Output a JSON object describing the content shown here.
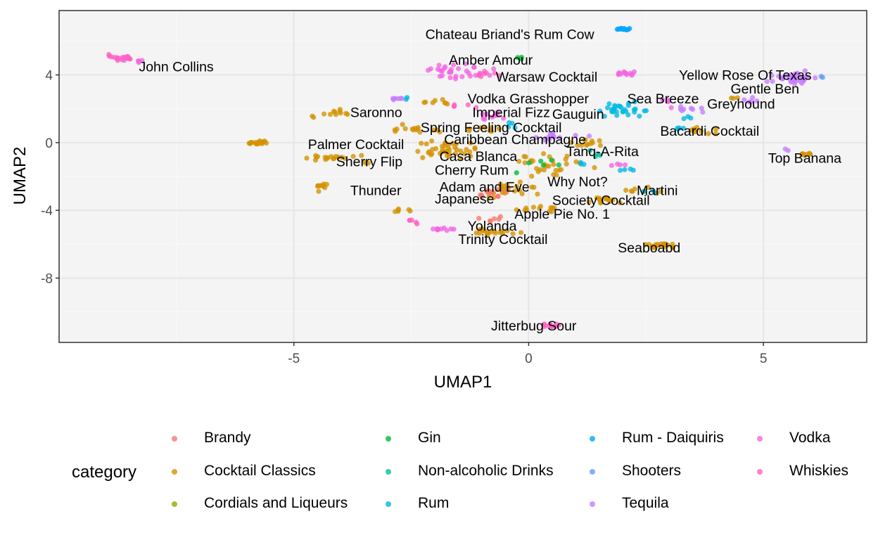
{
  "chart_data": {
    "type": "scatter",
    "xlabel": "UMAP1",
    "ylabel": "UMAP2",
    "xlim": [
      -10,
      7.2
    ],
    "ylim": [
      -11.8,
      7.8
    ],
    "xticks": [
      -5,
      0,
      5
    ],
    "yticks": [
      -8,
      -4,
      0,
      4
    ],
    "xtick_labels": [
      "-5",
      "0",
      "5"
    ],
    "ytick_labels": [
      "-8",
      "-4",
      "0",
      "4"
    ],
    "grid": true,
    "legend_title": "category",
    "legend_position": "bottom",
    "categories": [
      {
        "name": "Brandy",
        "color": "#F8766D"
      },
      {
        "name": "Cocktail Classics",
        "color": "#D39200"
      },
      {
        "name": "Cordials and Liqueurs",
        "color": "#93AA00"
      },
      {
        "name": "Gin",
        "color": "#00BA38"
      },
      {
        "name": "Non-alcoholic Drinks",
        "color": "#00C19F"
      },
      {
        "name": "Rum",
        "color": "#00B9E3"
      },
      {
        "name": "Rum - Daiquiris",
        "color": "#00A5FF"
      },
      {
        "name": "Shooters",
        "color": "#619CFF"
      },
      {
        "name": "Tequila",
        "color": "#C77CFF"
      },
      {
        "name": "Vodka",
        "color": "#F564E3"
      },
      {
        "name": "Whiskies",
        "color": "#FF61C3"
      }
    ],
    "annotations": [
      {
        "text": "Chateau Briand's Rum Cow",
        "x": -2.2,
        "y": 6.4
      },
      {
        "text": "John Collins",
        "x": -8.3,
        "y": 4.5
      },
      {
        "text": "Amber Amour",
        "x": -1.7,
        "y": 4.9
      },
      {
        "text": "Yellow Rose Of Texas",
        "x": 3.2,
        "y": 4.0
      },
      {
        "text": "Warsaw Cocktail",
        "x": -0.7,
        "y": 3.9
      },
      {
        "text": "Gentle Ben",
        "x": 4.3,
        "y": 3.2
      },
      {
        "text": "Vodka Grasshopper",
        "x": -1.3,
        "y": 2.6
      },
      {
        "text": "Sea Breeze",
        "x": 2.1,
        "y": 2.6
      },
      {
        "text": "Greyhound",
        "x": 3.8,
        "y": 2.3
      },
      {
        "text": "Saronno",
        "x": -3.8,
        "y": 1.8
      },
      {
        "text": "Imperial Fizz",
        "x": -1.2,
        "y": 1.8
      },
      {
        "text": "Gauguin",
        "x": 0.5,
        "y": 1.7
      },
      {
        "text": "Spring Feeling Cocktail",
        "x": -2.3,
        "y": 0.9
      },
      {
        "text": "Bacardi Cocktail",
        "x": 2.8,
        "y": 0.7
      },
      {
        "text": "Caribbean Champagne",
        "x": -1.8,
        "y": 0.2
      },
      {
        "text": "Palmer Cocktail",
        "x": -4.7,
        "y": -0.1
      },
      {
        "text": "Tanq-A-Rita",
        "x": 0.8,
        "y": -0.5
      },
      {
        "text": "Casa Blanca",
        "x": -1.9,
        "y": -0.8
      },
      {
        "text": "Top Banana",
        "x": 5.1,
        "y": -0.9
      },
      {
        "text": "Sherry Flip",
        "x": -4.1,
        "y": -1.1
      },
      {
        "text": "Cherry Rum",
        "x": -2.0,
        "y": -1.6
      },
      {
        "text": "Why Not?",
        "x": 0.4,
        "y": -2.3
      },
      {
        "text": "Adam and Eve",
        "x": -1.9,
        "y": -2.6
      },
      {
        "text": "Thunder",
        "x": -3.8,
        "y": -2.8
      },
      {
        "text": "Martini",
        "x": 2.3,
        "y": -2.8
      },
      {
        "text": "Japanese",
        "x": -2.0,
        "y": -3.3
      },
      {
        "text": "Society Cocktail",
        "x": 0.5,
        "y": -3.4
      },
      {
        "text": "Apple Pie No. 1",
        "x": -0.3,
        "y": -4.2
      },
      {
        "text": "Yolanda",
        "x": -1.3,
        "y": -4.9
      },
      {
        "text": "Trinity Cocktail",
        "x": -1.5,
        "y": -5.7
      },
      {
        "text": "Seaboabd",
        "x": 1.9,
        "y": -6.2
      },
      {
        "text": "Jitterbug Sour",
        "x": -0.8,
        "y": -10.8
      }
    ],
    "clusters": [
      {
        "c": 10,
        "x": -8.7,
        "y": 5.0,
        "sx": 0.28,
        "sy": 0.15,
        "n": 18
      },
      {
        "c": 9,
        "x": -8.3,
        "y": 4.8,
        "sx": 0.2,
        "sy": 0.1,
        "n": 5
      },
      {
        "c": 6,
        "x": 2.0,
        "y": 6.7,
        "sx": 0.15,
        "sy": 0.06,
        "n": 14
      },
      {
        "c": 3,
        "x": -0.2,
        "y": 5.0,
        "sx": 0.1,
        "sy": 0.05,
        "n": 3
      },
      {
        "c": 9,
        "x": -1.5,
        "y": 4.2,
        "sx": 0.55,
        "sy": 0.35,
        "n": 30
      },
      {
        "c": 10,
        "x": -1.0,
        "y": 4.0,
        "sx": 0.3,
        "sy": 0.2,
        "n": 8
      },
      {
        "c": 9,
        "x": 2.0,
        "y": 4.1,
        "sx": 0.25,
        "sy": 0.08,
        "n": 12
      },
      {
        "c": 8,
        "x": 5.7,
        "y": 3.8,
        "sx": 0.4,
        "sy": 0.3,
        "n": 35
      },
      {
        "c": 7,
        "x": 6.2,
        "y": 3.9,
        "sx": 0.1,
        "sy": 0.05,
        "n": 2
      },
      {
        "c": 8,
        "x": -2.8,
        "y": 2.6,
        "sx": 0.12,
        "sy": 0.05,
        "n": 6
      },
      {
        "c": 5,
        "x": -2.6,
        "y": 2.6,
        "sx": 0.05,
        "sy": 0.05,
        "n": 2
      },
      {
        "c": 1,
        "x": -2.0,
        "y": 2.4,
        "sx": 0.35,
        "sy": 0.15,
        "n": 8
      },
      {
        "c": 10,
        "x": -1.4,
        "y": 2.2,
        "sx": 0.3,
        "sy": 0.1,
        "n": 5
      },
      {
        "c": 9,
        "x": -0.6,
        "y": 1.5,
        "sx": 0.35,
        "sy": 0.25,
        "n": 10
      },
      {
        "c": 5,
        "x": -0.3,
        "y": 1.0,
        "sx": 0.15,
        "sy": 0.15,
        "n": 4
      },
      {
        "c": 5,
        "x": 2.0,
        "y": 1.9,
        "sx": 0.4,
        "sy": 0.35,
        "n": 30
      },
      {
        "c": 9,
        "x": 3.0,
        "y": 2.5,
        "sx": 0.1,
        "sy": 0.3,
        "n": 5
      },
      {
        "c": 8,
        "x": 3.5,
        "y": 1.9,
        "sx": 0.3,
        "sy": 0.15,
        "n": 8
      },
      {
        "c": 5,
        "x": 3.4,
        "y": 1.5,
        "sx": 0.1,
        "sy": 0.1,
        "n": 3
      },
      {
        "c": 8,
        "x": 4.7,
        "y": 2.5,
        "sx": 0.15,
        "sy": 0.2,
        "n": 5
      },
      {
        "c": 1,
        "x": 4.4,
        "y": 2.6,
        "sx": 0.1,
        "sy": 0.1,
        "n": 3
      },
      {
        "c": 1,
        "x": -4.1,
        "y": 1.8,
        "sx": 0.3,
        "sy": 0.15,
        "n": 10
      },
      {
        "c": 1,
        "x": -4.6,
        "y": 1.5,
        "sx": 0.05,
        "sy": 0.05,
        "n": 2
      },
      {
        "c": 1,
        "x": -2.5,
        "y": 0.8,
        "sx": 0.6,
        "sy": 0.2,
        "n": 15
      },
      {
        "c": 1,
        "x": -0.9,
        "y": 0.8,
        "sx": 0.4,
        "sy": 0.15,
        "n": 8
      },
      {
        "c": 8,
        "x": 0.7,
        "y": 0.3,
        "sx": 0.5,
        "sy": 0.25,
        "n": 12
      },
      {
        "c": 1,
        "x": 3.6,
        "y": 0.7,
        "sx": 0.3,
        "sy": 0.15,
        "n": 10
      },
      {
        "c": 5,
        "x": 3.2,
        "y": 0.8,
        "sx": 0.15,
        "sy": 0.1,
        "n": 4
      },
      {
        "c": 1,
        "x": -5.8,
        "y": 0.0,
        "sx": 0.2,
        "sy": 0.08,
        "n": 18
      },
      {
        "c": 1,
        "x": -4.3,
        "y": -0.9,
        "sx": 0.5,
        "sy": 0.15,
        "n": 18
      },
      {
        "c": 1,
        "x": -3.5,
        "y": -1.2,
        "sx": 0.1,
        "sy": 0.05,
        "n": 3
      },
      {
        "c": 1,
        "x": -1.8,
        "y": -0.5,
        "sx": 0.6,
        "sy": 0.5,
        "n": 40
      },
      {
        "c": 1,
        "x": 0.5,
        "y": -1.3,
        "sx": 0.6,
        "sy": 0.6,
        "n": 30
      },
      {
        "c": 3,
        "x": 0.3,
        "y": -1.5,
        "sx": 0.4,
        "sy": 0.4,
        "n": 6
      },
      {
        "c": 4,
        "x": 1.4,
        "y": -0.6,
        "sx": 0.3,
        "sy": 0.3,
        "n": 4
      },
      {
        "c": 5,
        "x": 1.2,
        "y": -1.1,
        "sx": 0.2,
        "sy": 0.2,
        "n": 3
      },
      {
        "c": 1,
        "x": 1.2,
        "y": 0.0,
        "sx": 0.35,
        "sy": 0.2,
        "n": 12
      },
      {
        "c": 1,
        "x": 5.9,
        "y": -0.7,
        "sx": 0.15,
        "sy": 0.1,
        "n": 8
      },
      {
        "c": 8,
        "x": 5.5,
        "y": -0.4,
        "sx": 0.05,
        "sy": 0.05,
        "n": 2
      },
      {
        "c": 1,
        "x": -4.4,
        "y": -2.6,
        "sx": 0.12,
        "sy": 0.2,
        "n": 10
      },
      {
        "c": 1,
        "x": -0.5,
        "y": -2.8,
        "sx": 0.5,
        "sy": 0.4,
        "n": 22
      },
      {
        "c": 0,
        "x": -0.8,
        "y": -3.0,
        "sx": 0.25,
        "sy": 0.3,
        "n": 12
      },
      {
        "c": 1,
        "x": 1.7,
        "y": -3.4,
        "sx": 0.35,
        "sy": 0.15,
        "n": 14
      },
      {
        "c": 1,
        "x": 2.5,
        "y": -2.8,
        "sx": 0.3,
        "sy": 0.2,
        "n": 8
      },
      {
        "c": 5,
        "x": 2.6,
        "y": -2.9,
        "sx": 0.1,
        "sy": 0.1,
        "n": 3
      },
      {
        "c": 5,
        "x": 2.1,
        "y": -1.6,
        "sx": 0.1,
        "sy": 0.05,
        "n": 4
      },
      {
        "c": 9,
        "x": 1.8,
        "y": -1.3,
        "sx": 0.2,
        "sy": 0.1,
        "n": 4
      },
      {
        "c": 1,
        "x": -2.7,
        "y": -4.0,
        "sx": 0.15,
        "sy": 0.1,
        "n": 6
      },
      {
        "c": 10,
        "x": -2.5,
        "y": -4.7,
        "sx": 0.15,
        "sy": 0.15,
        "n": 5
      },
      {
        "c": 9,
        "x": -1.8,
        "y": -5.1,
        "sx": 0.25,
        "sy": 0.08,
        "n": 10
      },
      {
        "c": 1,
        "x": -0.7,
        "y": -5.3,
        "sx": 0.4,
        "sy": 0.2,
        "n": 18
      },
      {
        "c": 0,
        "x": -0.7,
        "y": -4.5,
        "sx": 0.3,
        "sy": 0.2,
        "n": 6
      },
      {
        "c": 1,
        "x": 0.3,
        "y": -3.9,
        "sx": 0.5,
        "sy": 0.2,
        "n": 12
      },
      {
        "c": 1,
        "x": 2.8,
        "y": -6.1,
        "sx": 0.3,
        "sy": 0.15,
        "n": 20
      },
      {
        "c": 10,
        "x": 0.5,
        "y": -10.8,
        "sx": 0.2,
        "sy": 0.1,
        "n": 12
      }
    ]
  }
}
